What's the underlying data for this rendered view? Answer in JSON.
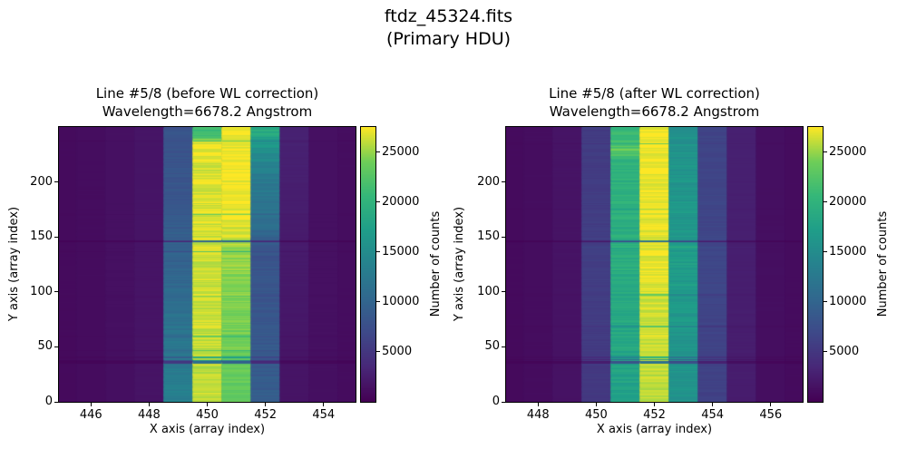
{
  "figure": {
    "suptitle_line1": "ftdz_45324.fits",
    "suptitle_line2": "(Primary HDU)"
  },
  "chart_data": {
    "type": "heatmap",
    "units": "counts",
    "colorbar": {
      "label": "Number of counts",
      "ticks": [
        5000,
        10000,
        15000,
        20000,
        25000
      ],
      "vmin": 0,
      "vmax": 27500
    },
    "colormap": {
      "name": "viridis",
      "stops": [
        [
          0.0,
          "#440154"
        ],
        [
          0.125,
          "#482878"
        ],
        [
          0.25,
          "#3e4989"
        ],
        [
          0.375,
          "#31688e"
        ],
        [
          0.5,
          "#26828e"
        ],
        [
          0.625,
          "#1f9e89"
        ],
        [
          0.75,
          "#35b779"
        ],
        [
          0.875,
          "#6ece58"
        ],
        [
          1.0,
          "#fde725"
        ]
      ]
    },
    "panels": [
      {
        "title_line1": "Line #5/8 (before WL correction)",
        "title_line2": "Wavelength=6678.2 Angstrom",
        "xlabel": "X axis (array index)",
        "ylabel": "Y axis (array index)",
        "xlim": [
          444.9,
          455.1
        ],
        "ylim": [
          0,
          250
        ],
        "nrows": 250,
        "xticks": [
          446,
          448,
          450,
          452,
          454
        ],
        "yticks": [
          0,
          50,
          100,
          150,
          200
        ],
        "columns": [
          {
            "x": 445,
            "profile": [
              [
                0,
                800
              ],
              [
                1,
                900
              ]
            ],
            "noise": 0.03
          },
          {
            "x": 446,
            "profile": [
              [
                0,
                950
              ],
              [
                1,
                1050
              ]
            ],
            "noise": 0.03
          },
          {
            "x": 447,
            "profile": [
              [
                0,
                1250
              ],
              [
                1,
                1350
              ]
            ],
            "noise": 0.03
          },
          {
            "x": 448,
            "profile": [
              [
                0,
                1600
              ],
              [
                1,
                1750
              ]
            ],
            "noise": 0.04
          },
          {
            "x": 449,
            "profile": [
              [
                0,
                13500
              ],
              [
                0.25,
                12000
              ],
              [
                0.5,
                9800
              ],
              [
                0.75,
                8400
              ],
              [
                1,
                7900
              ]
            ],
            "noise": 0.07
          },
          {
            "x": 450,
            "profile": [
              [
                0,
                25800
              ],
              [
                0.4,
                26300
              ],
              [
                0.7,
                26600
              ],
              [
                0.93,
                26800
              ],
              [
                0.955,
                26000
              ],
              [
                0.97,
                21500
              ],
              [
                1,
                21000
              ]
            ],
            "noise": 0.035
          },
          {
            "x": 451,
            "profile": [
              [
                0,
                23200
              ],
              [
                0.3,
                24200
              ],
              [
                0.55,
                25000
              ],
              [
                0.63,
                26800
              ],
              [
                0.8,
                27300
              ],
              [
                1,
                27400
              ]
            ],
            "noise": 0.035
          },
          {
            "x": 452,
            "profile": [
              [
                0,
                9200
              ],
              [
                0.3,
                8500
              ],
              [
                0.55,
                8000
              ],
              [
                0.64,
                11000
              ],
              [
                0.84,
                13000
              ],
              [
                0.95,
                16500
              ],
              [
                1,
                19500
              ]
            ],
            "noise": 0.07
          },
          {
            "x": 453,
            "profile": [
              [
                0,
                1600
              ],
              [
                0.6,
                2300
              ],
              [
                1,
                2900
              ]
            ],
            "noise": 0.05
          },
          {
            "x": 454,
            "profile": [
              [
                0,
                1250
              ],
              [
                1,
                1350
              ]
            ],
            "noise": 0.03
          },
          {
            "x": 455,
            "profile": [
              [
                0,
                1000
              ],
              [
                1,
                1100
              ]
            ],
            "noise": 0.03
          }
        ],
        "streaks": [
          [
            36,
            0.42
          ],
          [
            37,
            0.38
          ],
          [
            38,
            0.6
          ],
          [
            41,
            0.72
          ],
          [
            47,
            0.85
          ],
          [
            60,
            0.88
          ],
          [
            97,
            0.92
          ],
          [
            137,
            0.82
          ],
          [
            146,
            0.34
          ],
          [
            147,
            0.5
          ],
          [
            171,
            0.9
          ],
          [
            238,
            0.85
          ]
        ]
      },
      {
        "title_line1": "Line #5/8 (after WL correction)",
        "title_line2": "Wavelength=6678.2 Angstrom",
        "xlabel": "X axis (array index)",
        "ylabel": "Y axis (array index)",
        "xlim": [
          446.9,
          457.1
        ],
        "ylim": [
          0,
          250
        ],
        "nrows": 250,
        "xticks": [
          448,
          450,
          452,
          454,
          456
        ],
        "yticks": [
          0,
          50,
          100,
          150,
          200
        ],
        "columns": [
          {
            "x": 447,
            "profile": [
              [
                0,
                800
              ],
              [
                1,
                900
              ]
            ],
            "noise": 0.03
          },
          {
            "x": 448,
            "profile": [
              [
                0,
                1000
              ],
              [
                1,
                1100
              ]
            ],
            "noise": 0.03
          },
          {
            "x": 449,
            "profile": [
              [
                0,
                1500
              ],
              [
                1,
                1650
              ]
            ],
            "noise": 0.04
          },
          {
            "x": 450,
            "profile": [
              [
                0,
                5000
              ],
              [
                0.5,
                5800
              ],
              [
                1,
                5400
              ]
            ],
            "noise": 0.06
          },
          {
            "x": 451,
            "profile": [
              [
                0,
                17500
              ],
              [
                0.45,
                19000
              ],
              [
                0.88,
                19800
              ],
              [
                0.92,
                23200
              ],
              [
                0.96,
                21500
              ],
              [
                1,
                20500
              ]
            ],
            "noise": 0.06
          },
          {
            "x": 452,
            "profile": [
              [
                0,
                25900
              ],
              [
                0.5,
                26800
              ],
              [
                1,
                27300
              ]
            ],
            "noise": 0.03
          },
          {
            "x": 453,
            "profile": [
              [
                0,
                15800
              ],
              [
                0.5,
                17000
              ],
              [
                1,
                15600
              ]
            ],
            "noise": 0.06
          },
          {
            "x": 454,
            "profile": [
              [
                0,
                6000
              ],
              [
                0.5,
                6600
              ],
              [
                1,
                6300
              ]
            ],
            "noise": 0.05
          },
          {
            "x": 455,
            "profile": [
              [
                0,
                2400
              ],
              [
                1,
                2750
              ]
            ],
            "noise": 0.04
          },
          {
            "x": 456,
            "profile": [
              [
                0,
                1150
              ],
              [
                1,
                1250
              ]
            ],
            "noise": 0.03
          },
          {
            "x": 457,
            "profile": [
              [
                0,
                900
              ],
              [
                1,
                1000
              ]
            ],
            "noise": 0.03
          }
        ],
        "streaks": [
          [
            36,
            0.45
          ],
          [
            37,
            0.4
          ],
          [
            39,
            0.62
          ],
          [
            41,
            0.75
          ],
          [
            69,
            0.85
          ],
          [
            98,
            0.9
          ],
          [
            141,
            1.1
          ],
          [
            146,
            0.35
          ],
          [
            147,
            0.55
          ],
          [
            176,
            0.92
          ],
          [
            235,
            0.88
          ]
        ]
      }
    ]
  }
}
